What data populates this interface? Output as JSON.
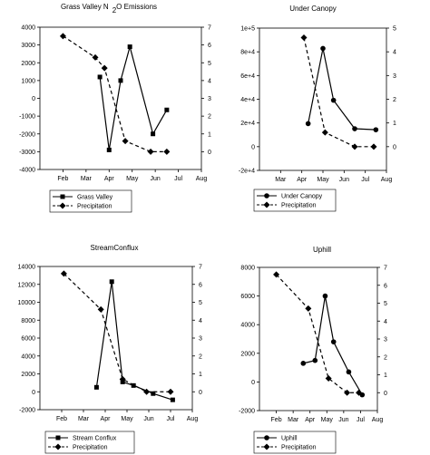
{
  "chart_data": [
    {
      "type": "line",
      "title": "Grass Valley N",
      "title_sub": "2",
      "title_tail": "O Emissions",
      "x_ticks": [
        "Feb",
        "Mar",
        "Apr",
        "May",
        "Jun",
        "Jul",
        "Aug"
      ],
      "ylim": [
        -4000,
        4000
      ],
      "y_ticks": [
        "4000",
        "3000",
        "2000",
        "1000",
        "0",
        "-1000",
        "-2000",
        "-3000",
        "-4000"
      ],
      "y2lim": [
        -1,
        7
      ],
      "y2_ticks": [
        "7",
        "6",
        "5",
        "4",
        "3",
        "2",
        "1",
        "0"
      ],
      "legend": {
        "position": "bottom-left"
      },
      "series": [
        {
          "name": "Grass Valley",
          "marker": "square",
          "dash": "solid",
          "axis": "left",
          "points": [
            [
              3.6,
              1200
            ],
            [
              4.0,
              -2900
            ],
            [
              4.5,
              1000
            ],
            [
              4.9,
              2900
            ],
            [
              5.9,
              -2000
            ],
            [
              6.5,
              -650
            ]
          ]
        },
        {
          "name": "Precipitation",
          "marker": "diamond",
          "dash": "dashed",
          "axis": "right",
          "points": [
            [
              2.0,
              6.5
            ],
            [
              3.4,
              5.3
            ],
            [
              3.8,
              4.7
            ],
            [
              4.7,
              0.6
            ],
            [
              5.8,
              0
            ],
            [
              6.5,
              0
            ]
          ]
        }
      ]
    },
    {
      "type": "line",
      "title": "Under Canopy",
      "x_ticks": [
        "Mar",
        "Apr",
        "May",
        "Jun",
        "Jul",
        "Aug"
      ],
      "ylim": [
        -40000,
        100000
      ],
      "y_ticks": [
        "1e+5",
        "8e+4",
        "6e+4",
        "4e+4",
        "2e+4",
        "0",
        "-2e+4"
      ],
      "y2lim": [
        -1,
        5
      ],
      "y2_ticks": [
        "5",
        "4",
        "3",
        "2",
        "1",
        "0"
      ],
      "legend": {
        "position": "bottom-left"
      },
      "series": [
        {
          "name": "Under Canopy",
          "marker": "circle",
          "dash": "solid",
          "axis": "left",
          "points": [
            [
              4.3,
              6000
            ],
            [
              5.0,
              80000
            ],
            [
              5.5,
              29000
            ],
            [
              6.5,
              1000
            ],
            [
              7.5,
              0
            ]
          ]
        },
        {
          "name": "Precipitation",
          "marker": "diamond",
          "dash": "dashed",
          "axis": "right",
          "points": [
            [
              4.1,
              4.6
            ],
            [
              5.1,
              0.6
            ],
            [
              6.5,
              0.0
            ],
            [
              7.4,
              0.0
            ]
          ]
        }
      ]
    },
    {
      "type": "line",
      "title": "StreamConflux",
      "x_ticks": [
        "Feb",
        "Mar",
        "Apr",
        "May",
        "Jun",
        "Jul",
        "Aug"
      ],
      "ylim": [
        -2000,
        14000
      ],
      "y_ticks": [
        "14000",
        "12000",
        "10000",
        "8000",
        "6000",
        "4000",
        "2000",
        "0",
        "-2000"
      ],
      "y2lim": [
        -1,
        7
      ],
      "y2_ticks": [
        "7",
        "6",
        "5",
        "4",
        "3",
        "2",
        "1",
        "0"
      ],
      "legend": {
        "position": "bottom-left"
      },
      "series": [
        {
          "name": "Stream Conflux",
          "marker": "square",
          "dash": "solid",
          "axis": "left",
          "points": [
            [
              3.6,
              500
            ],
            [
              4.3,
              12300
            ],
            [
              4.8,
              1100
            ],
            [
              5.3,
              700
            ],
            [
              6.2,
              -200
            ],
            [
              7.1,
              -900
            ]
          ]
        },
        {
          "name": "Precipitation",
          "marker": "diamond",
          "dash": "dashed",
          "axis": "right",
          "points": [
            [
              2.1,
              6.6
            ],
            [
              3.8,
              4.6
            ],
            [
              4.8,
              0.7
            ],
            [
              5.9,
              0.0
            ],
            [
              7.0,
              0.0
            ]
          ]
        }
      ]
    },
    {
      "type": "line",
      "title": "Uphill",
      "x_ticks": [
        "Feb",
        "Mar",
        "Apr",
        "May",
        "Jun",
        "Jul",
        "Aug"
      ],
      "ylim": [
        -2000,
        8000
      ],
      "y_ticks": [
        "8000",
        "6000",
        "4000",
        "2000",
        "0",
        "-2000"
      ],
      "y2lim": [
        -1,
        7
      ],
      "y2_ticks": [
        "7",
        "6",
        "5",
        "4",
        "3",
        "2",
        "1",
        "0"
      ],
      "legend": {
        "position": "bottom-left"
      },
      "series": [
        {
          "name": "Uphill",
          "marker": "circle",
          "dash": "solid",
          "axis": "left",
          "points": [
            [
              3.6,
              1300
            ],
            [
              4.3,
              1500
            ],
            [
              4.9,
              6000
            ],
            [
              5.4,
              2800
            ],
            [
              6.3,
              700
            ],
            [
              7.1,
              -900
            ]
          ]
        },
        {
          "name": "Precipitation",
          "marker": "diamond",
          "dash": "dashed",
          "axis": "right",
          "points": [
            [
              2.0,
              6.6
            ],
            [
              3.9,
              4.7
            ],
            [
              5.1,
              0.8
            ],
            [
              6.2,
              0.0
            ],
            [
              6.9,
              0.0
            ]
          ]
        }
      ]
    }
  ]
}
